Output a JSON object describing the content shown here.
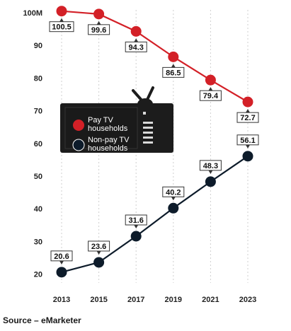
{
  "chart_data": {
    "type": "line",
    "x": [
      "2013",
      "2015",
      "2017",
      "2019",
      "2021",
      "2023"
    ],
    "series": [
      {
        "name": "Pay TV households",
        "values": [
          100.5,
          99.6,
          94.3,
          86.5,
          79.4,
          72.7
        ],
        "color": "#d32027"
      },
      {
        "name": "Non-pay TV households",
        "values": [
          20.6,
          23.6,
          31.6,
          40.2,
          48.3,
          56.1
        ],
        "color": "#0d1b2a"
      }
    ],
    "data_labels": {
      "pay": [
        "100.5",
        "99.6",
        "94.3",
        "86.5",
        "79.4",
        "72.7"
      ],
      "nonpay": [
        "20.6",
        "23.6",
        "31.6",
        "40.2",
        "48.3",
        "56.1"
      ]
    },
    "ytick_labels": [
      "100M",
      "90",
      "80",
      "70",
      "60",
      "50",
      "40",
      "30",
      "20"
    ],
    "ytick_values": [
      100,
      90,
      80,
      70,
      60,
      50,
      40,
      30,
      20
    ],
    "ylim": [
      20,
      100
    ],
    "grid": "vertical dashed",
    "legend_placement": "left-middle (inside TV illustration)",
    "legend": [
      "Pay TV households",
      "Non-pay TV households"
    ]
  },
  "source": "Source – eMarketer"
}
